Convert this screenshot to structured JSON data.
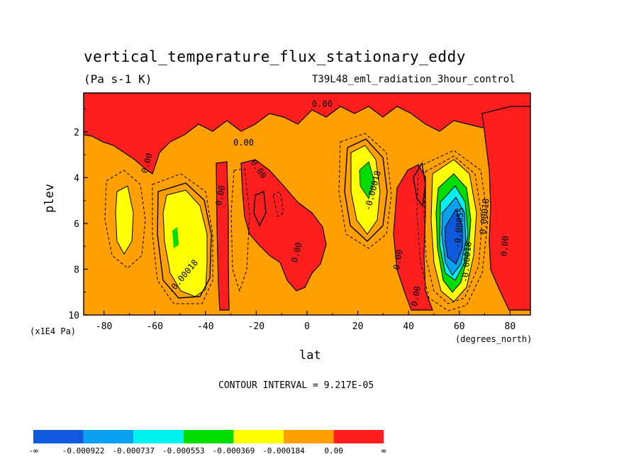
{
  "chart_data": {
    "type": "heatmap",
    "title": "vertical_temperature_flux_stationary_eddy",
    "units": "(Pa s-1 K)",
    "dataset": "T39L48_eml_radiation_3hour_control",
    "xlabel": "lat",
    "x_units": "(degrees_north)",
    "ylabel": "plev",
    "y_units": "(x1E4 Pa)",
    "contour_interval": "CONTOUR INTERVAL = 9.217E-05",
    "x_ticks": [
      "-80",
      "-60",
      "-40",
      "-20",
      "0",
      "20",
      "40",
      "60",
      "80"
    ],
    "y_ticks": [
      "2",
      "4",
      "6",
      "8",
      "10"
    ],
    "xlim": [
      -88,
      88
    ],
    "ylim": [
      10,
      0.3
    ],
    "y_reversed": true,
    "contour_labels": [
      {
        "text": "0.00",
        "lat": 6,
        "plev": 0.9,
        "rot": 0
      },
      {
        "text": "0.00",
        "lat": -25,
        "plev": 2.6,
        "rot": 0
      },
      {
        "text": "0.00",
        "lat": -62,
        "plev": 3.4,
        "rot": -75
      },
      {
        "text": "0.00",
        "lat": -20,
        "plev": 3.7,
        "rot": 55
      },
      {
        "text": "0.00",
        "lat": -33,
        "plev": 4.8,
        "rot": -80
      },
      {
        "text": "0.00",
        "lat": -3,
        "plev": 7.3,
        "rot": -75
      },
      {
        "text": "-0.00018",
        "lat": -48,
        "plev": 8.4,
        "rot": -50
      },
      {
        "text": "-0.00018",
        "lat": 27,
        "plev": 4.6,
        "rot": -75
      },
      {
        "text": "0.00",
        "lat": 37,
        "plev": 7.6,
        "rot": -80
      },
      {
        "text": "0.00",
        "lat": 44,
        "plev": 9.2,
        "rot": -80
      },
      {
        "text": "-0.00055",
        "lat": 61,
        "plev": 6.2,
        "rot": -85
      },
      {
        "text": "-0.00018",
        "lat": 64,
        "plev": 7.7,
        "rot": -85
      },
      {
        "text": "0.00018",
        "lat": 71,
        "plev": 5.7,
        "rot": -85
      },
      {
        "text": "0.00",
        "lat": 79,
        "plev": 7.0,
        "rot": -85
      }
    ],
    "levels": [
      {
        "label": "-∞",
        "color": "#0f5adc"
      },
      {
        "label": "-0.000922",
        "color": "#0aa0f0"
      },
      {
        "label": "-0.000737",
        "color": "#00f0f0"
      },
      {
        "label": "-0.000553",
        "color": "#00dc00"
      },
      {
        "label": "-0.000369",
        "color": "#ffff00"
      },
      {
        "label": "-0.000184",
        "color": "#ffa000"
      },
      {
        "label": "0.00",
        "color": "#ff1e1e"
      },
      {
        "label": "∞",
        "color": null
      }
    ],
    "background_color": "#ffa000",
    "positive_color": "#ff1e1e",
    "grid": false,
    "legend_position": "bottom"
  }
}
